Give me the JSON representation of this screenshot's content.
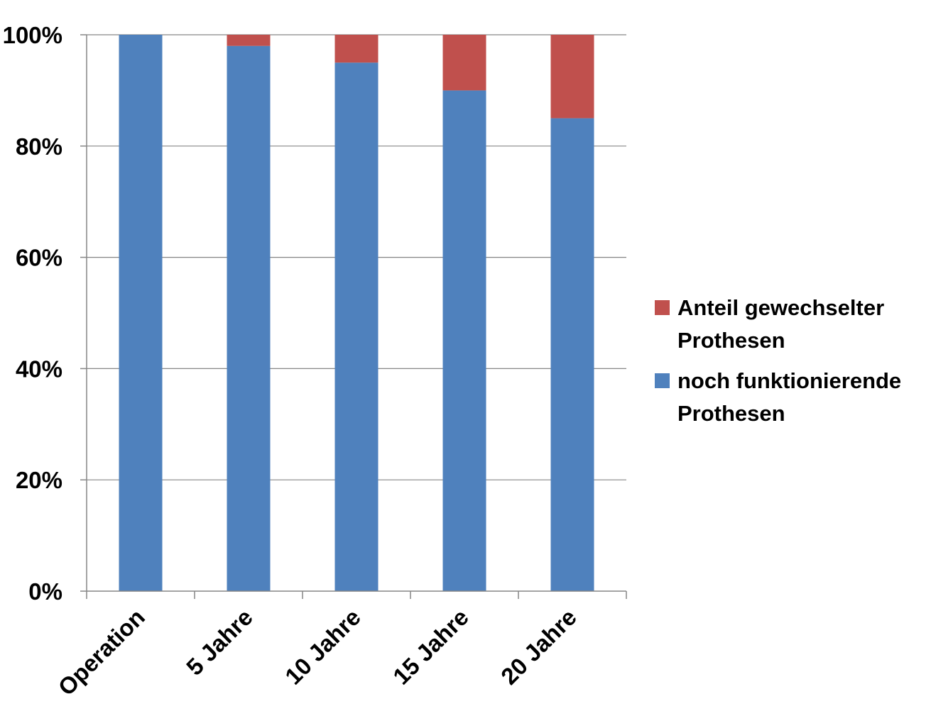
{
  "chart_data": {
    "type": "bar",
    "stacked": true,
    "categories": [
      "Operation",
      "5 Jahre",
      "10 Jahre",
      "15 Jahre",
      "20 Jahre"
    ],
    "series": [
      {
        "name": "noch funktionierende Prothesen",
        "legend_lines": [
          "noch funktionierende",
          "Prothesen"
        ],
        "color": "#4F81BD",
        "values": [
          100,
          98,
          95,
          90,
          85
        ]
      },
      {
        "name": "Anteil gewechselter Prothesen",
        "legend_lines": [
          "Anteil gewechselter",
          "Prothesen"
        ],
        "color": "#C0504D",
        "values": [
          0,
          2,
          5,
          10,
          15
        ]
      }
    ],
    "y_ticks": [
      "0%",
      "20%",
      "40%",
      "60%",
      "80%",
      "100%"
    ],
    "ylim": [
      0,
      100
    ],
    "grid": true,
    "legend_position": "right",
    "title": "",
    "xlabel": "",
    "ylabel": ""
  }
}
